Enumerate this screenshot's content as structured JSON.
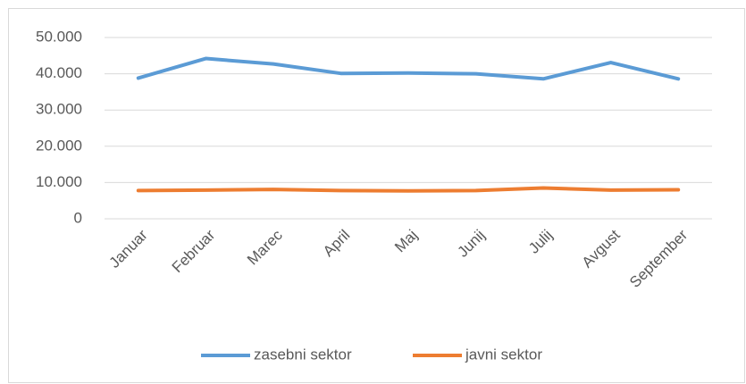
{
  "chart_data": {
    "type": "line",
    "categories": [
      "Januar",
      "Februar",
      "Marec",
      "April",
      "Maj",
      "Junij",
      "Julij",
      "Avgust",
      "September"
    ],
    "series": [
      {
        "name": "zasebni sektor",
        "color": "#5b9bd5",
        "values": [
          38800,
          44200,
          42700,
          40100,
          40200,
          40000,
          38600,
          43100,
          38600
        ]
      },
      {
        "name": "javni sektor",
        "color": "#ed7d31",
        "values": [
          7800,
          7900,
          8100,
          7800,
          7700,
          7800,
          8500,
          7900,
          8000
        ]
      }
    ],
    "ylim": [
      0,
      50000
    ],
    "yticks": [
      0,
      {
        "value": 10000,
        "label": "10.000"
      },
      {
        "value": 20000,
        "label": "20.000"
      },
      {
        "value": 30000,
        "label": "30.000"
      },
      {
        "value": 40000,
        "label": "40.000"
      },
      {
        "value": 50000,
        "label": "50.000"
      }
    ],
    "grid": true,
    "legend": "bottom"
  }
}
